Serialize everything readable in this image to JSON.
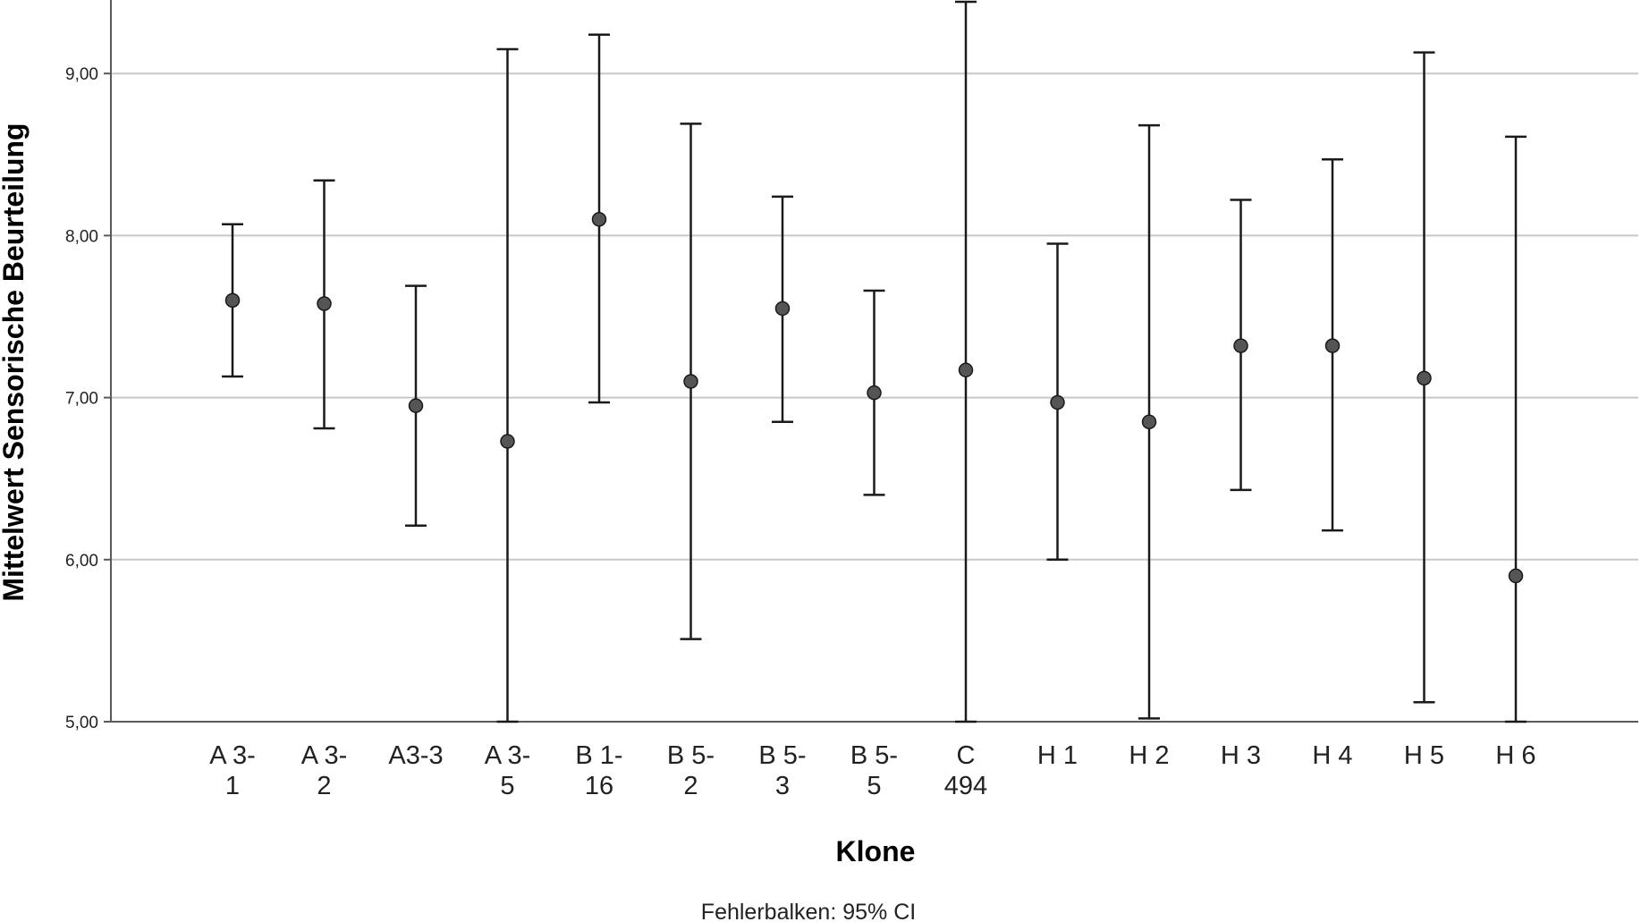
{
  "chart_data": {
    "type": "errorbar",
    "xlabel": "Klone",
    "ylabel": "Mittelwert Sensorische Beurteilung",
    "footnote": "Fehlerbalken: 95% CI",
    "ylim": [
      5,
      9.45
    ],
    "yticks": [
      "5,00",
      "6,00",
      "7,00",
      "8,00",
      "9,00"
    ],
    "ytick_values": [
      5,
      6,
      7,
      8,
      9
    ],
    "grid": true,
    "categories": [
      "A 3-1",
      "A 3-2",
      "A3-3",
      "A 3-5",
      "B 1-16",
      "B 5-2",
      "B 5-3",
      "B 5-5",
      "C 494",
      "H 1",
      "H 2",
      "H 3",
      "H 4",
      "H 5",
      "H 6"
    ],
    "category_label_lines": [
      [
        "A 3-",
        "1"
      ],
      [
        "A 3-",
        "2"
      ],
      [
        "A3-3"
      ],
      [
        "A 3-",
        "5"
      ],
      [
        "B 1-",
        "16"
      ],
      [
        "B 5-",
        "2"
      ],
      [
        "B 5-",
        "3"
      ],
      [
        "B 5-",
        "5"
      ],
      [
        "C",
        "494"
      ],
      [
        "H 1"
      ],
      [
        "H 2"
      ],
      [
        "H 3"
      ],
      [
        "H 4"
      ],
      [
        "H 5"
      ],
      [
        "H 6"
      ]
    ],
    "means": [
      7.6,
      7.58,
      6.95,
      6.73,
      8.1,
      7.1,
      7.55,
      7.03,
      7.17,
      6.97,
      6.85,
      7.32,
      7.32,
      7.12,
      5.9
    ],
    "ci_lower": [
      7.13,
      6.81,
      6.21,
      5.0,
      6.97,
      5.51,
      6.85,
      6.4,
      5.0,
      6.0,
      5.02,
      6.43,
      6.18,
      5.12,
      5.0
    ],
    "ci_upper": [
      8.07,
      8.34,
      7.69,
      9.15,
      9.24,
      8.69,
      8.24,
      7.66,
      9.45,
      7.95,
      8.68,
      8.22,
      8.47,
      9.13,
      8.61
    ],
    "colors": {
      "marker": "#555555",
      "line": "#1a1a1a",
      "grid": "#c8c8c8",
      "axis": "#5a5a5a"
    }
  }
}
